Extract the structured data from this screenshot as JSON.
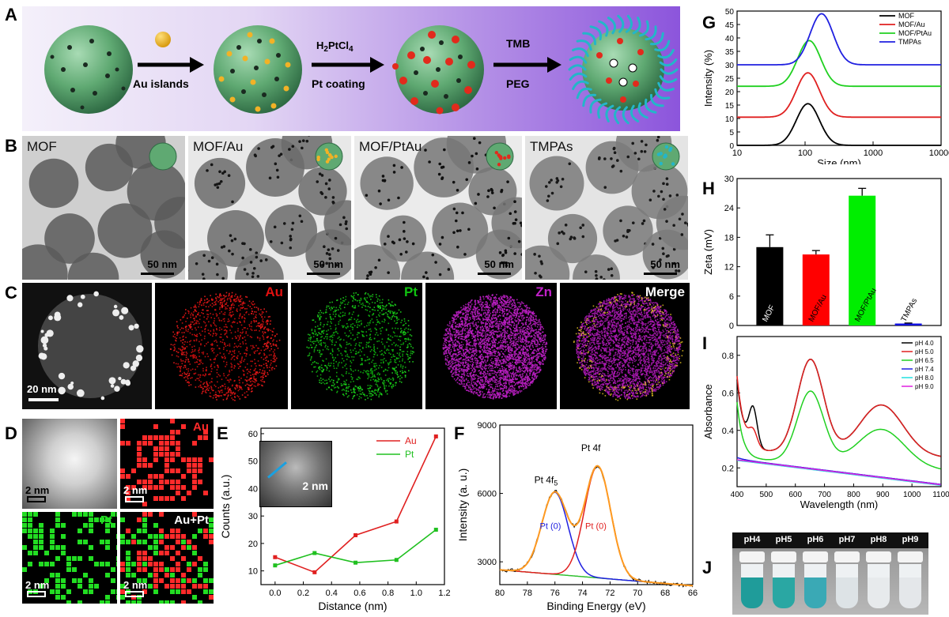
{
  "panelA": {
    "label": "A",
    "step1_top": "",
    "step1_bottom": "Au islands",
    "step2_top": "H2PtCl4",
    "step2_bottom": "Pt coating",
    "step3_top": "TMB",
    "step3_bottom": "PEG"
  },
  "panelB": {
    "label": "B",
    "images": [
      {
        "title": "MOF",
        "scale": "50 nm"
      },
      {
        "title": "MOF/Au",
        "scale": "50 nm"
      },
      {
        "title": "MOF/PtAu",
        "scale": "50 nm"
      },
      {
        "title": "TMPAs",
        "scale": "50 nm"
      }
    ]
  },
  "panelC": {
    "label": "C",
    "scale": "20 nm",
    "maps": [
      {
        "title": "",
        "color": "#d8d8d8"
      },
      {
        "title": "Au",
        "color": "#e01010"
      },
      {
        "title": "Pt",
        "color": "#10c010"
      },
      {
        "title": "Zn",
        "color": "#c020c8"
      },
      {
        "title": "Merge",
        "color": "#ffffff"
      }
    ]
  },
  "panelD": {
    "label": "D",
    "maps": [
      {
        "title": "",
        "scale": "2 nm"
      },
      {
        "title": "Au",
        "scale": "2 nm",
        "color": "#ff2a2a"
      },
      {
        "title": "Pt",
        "scale": "2 nm",
        "color": "#22dd22"
      },
      {
        "title": "Au+Pt",
        "scale": "2 nm",
        "color": "#ffffff"
      }
    ]
  },
  "panelE": {
    "label": "E",
    "inset_scale": "2 nm"
  },
  "panelF": {
    "label": "F"
  },
  "panelG": {
    "label": "G"
  },
  "panelH": {
    "label": "H"
  },
  "panelI": {
    "label": "I"
  },
  "panelJ": {
    "label": "J",
    "vials": [
      "pH4",
      "pH5",
      "pH6",
      "pH7",
      "pH8",
      "pH9"
    ]
  },
  "chart_data": [
    {
      "id": "E",
      "type": "line",
      "xlabel": "Distance (nm)",
      "ylabel": "Counts (a.u.)",
      "xlim": [
        -0.1,
        1.2
      ],
      "ylim": [
        5,
        62
      ],
      "xticks": [
        0.0,
        0.2,
        0.4,
        0.6,
        0.8,
        1.0,
        1.2
      ],
      "yticks": [
        10,
        20,
        30,
        40,
        50,
        60
      ],
      "legend": "top-right",
      "series": [
        {
          "name": "Au",
          "color": "#e02020",
          "x": [
            0,
            0.28,
            0.57,
            0.86,
            1.14
          ],
          "y": [
            15,
            9.5,
            23,
            28,
            59
          ]
        },
        {
          "name": "Pt",
          "color": "#20c020",
          "x": [
            0,
            0.28,
            0.57,
            0.86,
            1.14
          ],
          "y": [
            12,
            16.5,
            13,
            14,
            25
          ]
        }
      ]
    },
    {
      "id": "F",
      "type": "line",
      "xlabel": "Binding Energy (eV)",
      "ylabel": "Intensity (a. u.)",
      "xlim": [
        80,
        66
      ],
      "ylim": [
        2000,
        9000
      ],
      "xticks": [
        80,
        78,
        76,
        74,
        72,
        70,
        68,
        66
      ],
      "yticks": [
        3000,
        6000,
        9000
      ],
      "annotations": [
        "Pt 4f5",
        "Pt 4f",
        "Pt (0)",
        "Pt (0)"
      ],
      "series": [
        {
          "name": "raw",
          "color": "#000000"
        },
        {
          "name": "fit",
          "color": "#ff9a20"
        },
        {
          "name": "Pt (0) 4f5",
          "color": "#2020e0",
          "center": 76.0,
          "height": 3600
        },
        {
          "name": "Pt (0) 4f7",
          "color": "#e02020",
          "center": 72.9,
          "height": 4900
        },
        {
          "name": "background",
          "color": "#30c030",
          "x": [
            80,
            66
          ],
          "y": [
            2650,
            1950
          ]
        }
      ]
    },
    {
      "id": "G",
      "type": "line",
      "xscale": "log",
      "xlabel": "Size (nm)",
      "ylabel": "Intensity (%)",
      "xlim": [
        10,
        10000
      ],
      "ylim": [
        0,
        50
      ],
      "xticks": [
        10,
        100,
        1000,
        10000
      ],
      "yticks": [
        0,
        5,
        10,
        15,
        20,
        25,
        30,
        35,
        40,
        45,
        50
      ],
      "legend": "top-right",
      "series": [
        {
          "name": "MOF",
          "color": "#000000",
          "offset": 0,
          "peak": 15.5,
          "center": 110
        },
        {
          "name": "MOF/Au",
          "color": "#e02020",
          "offset": 10.5,
          "peak": 16.5,
          "center": 110
        },
        {
          "name": "MOF/PtAu",
          "color": "#20d020",
          "offset": 22,
          "peak": 17,
          "center": 115
        },
        {
          "name": "TMPAs",
          "color": "#2020e0",
          "offset": 30,
          "peak": 19,
          "center": 175
        }
      ]
    },
    {
      "id": "H",
      "type": "bar",
      "ylabel": "Zeta (mV)",
      "ylim": [
        0,
        30
      ],
      "yticks": [
        0,
        6,
        12,
        18,
        24,
        30
      ],
      "categories": [
        "MOF",
        "MOF/Au",
        "MOF/PtAu",
        "TMPAs"
      ],
      "values": [
        16,
        14.5,
        26.5,
        0.4
      ],
      "errors": [
        2.5,
        0.8,
        1.5,
        0.1
      ],
      "colors": [
        "#000000",
        "#ff0000",
        "#00ee00",
        "#1010e0"
      ]
    },
    {
      "id": "I",
      "type": "line",
      "xlabel": "Wavelength (nm)",
      "ylabel": "Absorbance",
      "xlim": [
        400,
        1100
      ],
      "ylim": [
        0.1,
        0.9
      ],
      "xticks": [
        400,
        500,
        600,
        700,
        800,
        900,
        1000,
        1100
      ],
      "yticks": [
        0.2,
        0.4,
        0.6,
        0.8
      ],
      "legend": "top-right",
      "series": [
        {
          "name": "pH 4.0",
          "color": "#000000"
        },
        {
          "name": "pH 5.0",
          "color": "#e02020"
        },
        {
          "name": "pH 6.5",
          "color": "#20d020"
        },
        {
          "name": "pH 7.4",
          "color": "#2020e0"
        },
        {
          "name": "pH 8.0",
          "color": "#20e0e0"
        },
        {
          "name": "pH 9.0",
          "color": "#e020e0"
        }
      ]
    }
  ]
}
